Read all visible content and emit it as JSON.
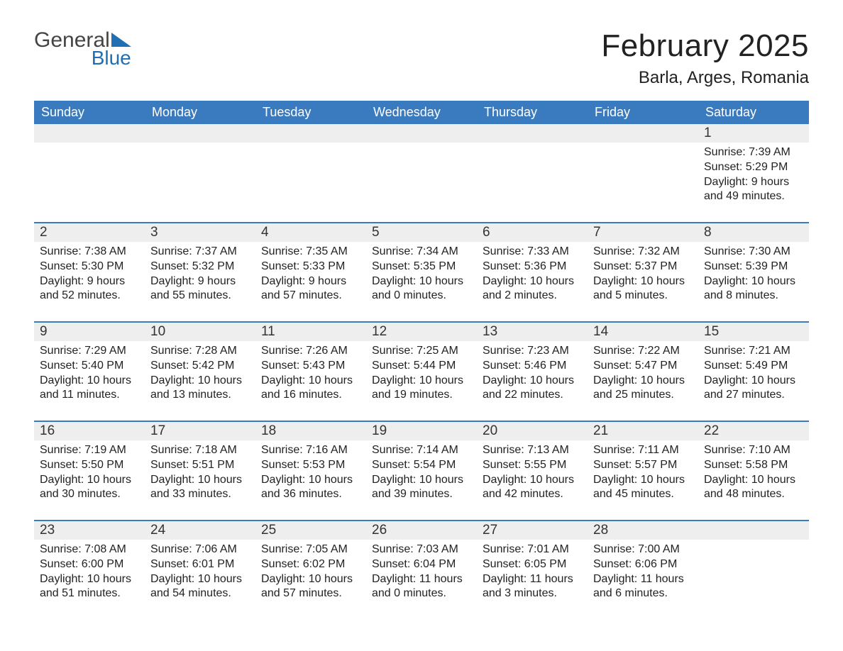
{
  "logo": {
    "text_general": "General",
    "text_blue": "Blue"
  },
  "title": {
    "month": "February 2025",
    "location": "Barla, Arges, Romania"
  },
  "header_bg": "#3a7bbf",
  "header_text_color": "#ffffff",
  "daynum_bg": "#eeeeee",
  "border_color": "#3a7bbf",
  "days_of_week": [
    "Sunday",
    "Monday",
    "Tuesday",
    "Wednesday",
    "Thursday",
    "Friday",
    "Saturday"
  ],
  "weeks": [
    {
      "top_border": false,
      "cells": [
        {
          "num": "",
          "sunrise": "",
          "sunset": "",
          "daylight": ""
        },
        {
          "num": "",
          "sunrise": "",
          "sunset": "",
          "daylight": ""
        },
        {
          "num": "",
          "sunrise": "",
          "sunset": "",
          "daylight": ""
        },
        {
          "num": "",
          "sunrise": "",
          "sunset": "",
          "daylight": ""
        },
        {
          "num": "",
          "sunrise": "",
          "sunset": "",
          "daylight": ""
        },
        {
          "num": "",
          "sunrise": "",
          "sunset": "",
          "daylight": ""
        },
        {
          "num": "1",
          "sunrise": "Sunrise: 7:39 AM",
          "sunset": "Sunset: 5:29 PM",
          "daylight": "Daylight: 9 hours and 49 minutes."
        }
      ]
    },
    {
      "top_border": true,
      "cells": [
        {
          "num": "2",
          "sunrise": "Sunrise: 7:38 AM",
          "sunset": "Sunset: 5:30 PM",
          "daylight": "Daylight: 9 hours and 52 minutes."
        },
        {
          "num": "3",
          "sunrise": "Sunrise: 7:37 AM",
          "sunset": "Sunset: 5:32 PM",
          "daylight": "Daylight: 9 hours and 55 minutes."
        },
        {
          "num": "4",
          "sunrise": "Sunrise: 7:35 AM",
          "sunset": "Sunset: 5:33 PM",
          "daylight": "Daylight: 9 hours and 57 minutes."
        },
        {
          "num": "5",
          "sunrise": "Sunrise: 7:34 AM",
          "sunset": "Sunset: 5:35 PM",
          "daylight": "Daylight: 10 hours and 0 minutes."
        },
        {
          "num": "6",
          "sunrise": "Sunrise: 7:33 AM",
          "sunset": "Sunset: 5:36 PM",
          "daylight": "Daylight: 10 hours and 2 minutes."
        },
        {
          "num": "7",
          "sunrise": "Sunrise: 7:32 AM",
          "sunset": "Sunset: 5:37 PM",
          "daylight": "Daylight: 10 hours and 5 minutes."
        },
        {
          "num": "8",
          "sunrise": "Sunrise: 7:30 AM",
          "sunset": "Sunset: 5:39 PM",
          "daylight": "Daylight: 10 hours and 8 minutes."
        }
      ]
    },
    {
      "top_border": true,
      "cells": [
        {
          "num": "9",
          "sunrise": "Sunrise: 7:29 AM",
          "sunset": "Sunset: 5:40 PM",
          "daylight": "Daylight: 10 hours and 11 minutes."
        },
        {
          "num": "10",
          "sunrise": "Sunrise: 7:28 AM",
          "sunset": "Sunset: 5:42 PM",
          "daylight": "Daylight: 10 hours and 13 minutes."
        },
        {
          "num": "11",
          "sunrise": "Sunrise: 7:26 AM",
          "sunset": "Sunset: 5:43 PM",
          "daylight": "Daylight: 10 hours and 16 minutes."
        },
        {
          "num": "12",
          "sunrise": "Sunrise: 7:25 AM",
          "sunset": "Sunset: 5:44 PM",
          "daylight": "Daylight: 10 hours and 19 minutes."
        },
        {
          "num": "13",
          "sunrise": "Sunrise: 7:23 AM",
          "sunset": "Sunset: 5:46 PM",
          "daylight": "Daylight: 10 hours and 22 minutes."
        },
        {
          "num": "14",
          "sunrise": "Sunrise: 7:22 AM",
          "sunset": "Sunset: 5:47 PM",
          "daylight": "Daylight: 10 hours and 25 minutes."
        },
        {
          "num": "15",
          "sunrise": "Sunrise: 7:21 AM",
          "sunset": "Sunset: 5:49 PM",
          "daylight": "Daylight: 10 hours and 27 minutes."
        }
      ]
    },
    {
      "top_border": true,
      "cells": [
        {
          "num": "16",
          "sunrise": "Sunrise: 7:19 AM",
          "sunset": "Sunset: 5:50 PM",
          "daylight": "Daylight: 10 hours and 30 minutes."
        },
        {
          "num": "17",
          "sunrise": "Sunrise: 7:18 AM",
          "sunset": "Sunset: 5:51 PM",
          "daylight": "Daylight: 10 hours and 33 minutes."
        },
        {
          "num": "18",
          "sunrise": "Sunrise: 7:16 AM",
          "sunset": "Sunset: 5:53 PM",
          "daylight": "Daylight: 10 hours and 36 minutes."
        },
        {
          "num": "19",
          "sunrise": "Sunrise: 7:14 AM",
          "sunset": "Sunset: 5:54 PM",
          "daylight": "Daylight: 10 hours and 39 minutes."
        },
        {
          "num": "20",
          "sunrise": "Sunrise: 7:13 AM",
          "sunset": "Sunset: 5:55 PM",
          "daylight": "Daylight: 10 hours and 42 minutes."
        },
        {
          "num": "21",
          "sunrise": "Sunrise: 7:11 AM",
          "sunset": "Sunset: 5:57 PM",
          "daylight": "Daylight: 10 hours and 45 minutes."
        },
        {
          "num": "22",
          "sunrise": "Sunrise: 7:10 AM",
          "sunset": "Sunset: 5:58 PM",
          "daylight": "Daylight: 10 hours and 48 minutes."
        }
      ]
    },
    {
      "top_border": true,
      "cells": [
        {
          "num": "23",
          "sunrise": "Sunrise: 7:08 AM",
          "sunset": "Sunset: 6:00 PM",
          "daylight": "Daylight: 10 hours and 51 minutes."
        },
        {
          "num": "24",
          "sunrise": "Sunrise: 7:06 AM",
          "sunset": "Sunset: 6:01 PM",
          "daylight": "Daylight: 10 hours and 54 minutes."
        },
        {
          "num": "25",
          "sunrise": "Sunrise: 7:05 AM",
          "sunset": "Sunset: 6:02 PM",
          "daylight": "Daylight: 10 hours and 57 minutes."
        },
        {
          "num": "26",
          "sunrise": "Sunrise: 7:03 AM",
          "sunset": "Sunset: 6:04 PM",
          "daylight": "Daylight: 11 hours and 0 minutes."
        },
        {
          "num": "27",
          "sunrise": "Sunrise: 7:01 AM",
          "sunset": "Sunset: 6:05 PM",
          "daylight": "Daylight: 11 hours and 3 minutes."
        },
        {
          "num": "28",
          "sunrise": "Sunrise: 7:00 AM",
          "sunset": "Sunset: 6:06 PM",
          "daylight": "Daylight: 11 hours and 6 minutes."
        },
        {
          "num": "",
          "sunrise": "",
          "sunset": "",
          "daylight": ""
        }
      ]
    }
  ]
}
